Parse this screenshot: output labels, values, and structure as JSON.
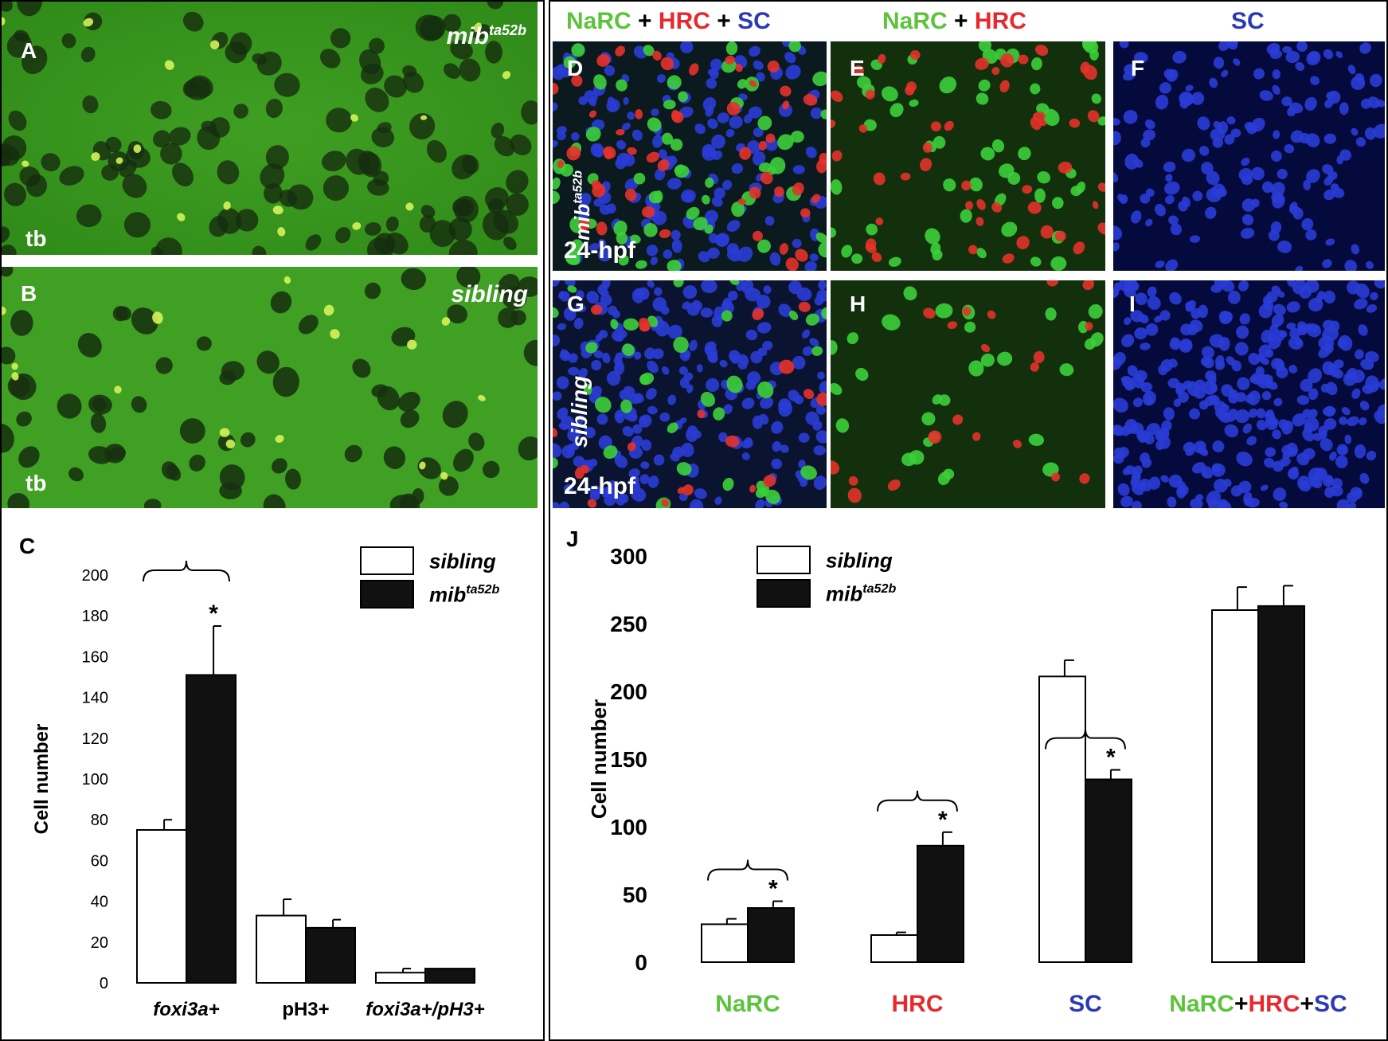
{
  "left_figure": {
    "panel_A": {
      "letter": "A",
      "genotype_base": "mib",
      "genotype_sup": "ta52b",
      "region": "tb"
    },
    "panel_B": {
      "letter": "B",
      "genotype": "sibling",
      "region": "tb"
    },
    "panel_C_letter": "C"
  },
  "right_figure": {
    "col_headers": {
      "col1": {
        "narc": "NaRC",
        "plus1": "+",
        "hrc": "HRC",
        "plus2": "+",
        "sc": "SC"
      },
      "col2": {
        "narc": "NaRC",
        "plus1": "+",
        "hrc": "HRC"
      },
      "col3": {
        "sc": "SC"
      }
    },
    "panels": {
      "D": {
        "letter": "D",
        "genotype_base": "mib",
        "genotype_sup": "ta52b",
        "stage": "24-hpf"
      },
      "E": {
        "letter": "E"
      },
      "F": {
        "letter": "F"
      },
      "G": {
        "letter": "G",
        "genotype": "sibling",
        "stage": "24-hpf"
      },
      "H": {
        "letter": "H"
      },
      "I": {
        "letter": "I"
      }
    },
    "panel_J_letter": "J"
  },
  "colors": {
    "narc_green": "#5cc43c",
    "hrc_red": "#e8282c",
    "sc_blue": "#2a3ab4",
    "fluor_green": "#3f9f22",
    "confocal_green_bg": "#12300c",
    "confocal_blue_bg": "#050a3c"
  },
  "chart_data": [
    {
      "type": "bar",
      "panel": "C",
      "ylabel": "Cell number",
      "ylim": [
        0,
        200
      ],
      "yticks": [
        "0",
        "20",
        "40",
        "60",
        "80",
        "100",
        "120",
        "140",
        "160",
        "180",
        "200"
      ],
      "categories": [
        "foxi3a+",
        "pH3+",
        "foxi3a+/pH3+"
      ],
      "legend_position": "top-right",
      "series": [
        {
          "name": "sibling",
          "fill": "#ffffff",
          "values": [
            75,
            33,
            5
          ],
          "errors": [
            5,
            8,
            2
          ]
        },
        {
          "name_base": "mib",
          "name_sup": "ta52b",
          "fill": "#111111",
          "values": [
            151,
            27,
            7
          ],
          "errors": [
            24,
            4,
            0
          ]
        }
      ],
      "significance_marker": "*",
      "significant_categories": [
        0
      ]
    },
    {
      "type": "bar",
      "panel": "J",
      "ylabel": "Cell number",
      "ylim": [
        0,
        300
      ],
      "yticks": [
        "0",
        "50",
        "100",
        "150",
        "200",
        "250",
        "300"
      ],
      "categories": [
        "NaRC",
        "HRC",
        "SC",
        "NaRC+HRC+SC"
      ],
      "legend_position": "top-left",
      "series": [
        {
          "name": "sibling",
          "fill": "#ffffff",
          "values": [
            28,
            20,
            211,
            260
          ],
          "errors": [
            4,
            2,
            12,
            17
          ]
        },
        {
          "name_base": "mib",
          "name_sup": "ta52b",
          "fill": "#111111",
          "values": [
            40,
            86,
            135,
            263
          ],
          "errors": [
            5,
            10,
            7,
            15
          ]
        }
      ],
      "significance_marker": "*",
      "significant_categories": [
        0,
        1,
        2
      ]
    }
  ]
}
